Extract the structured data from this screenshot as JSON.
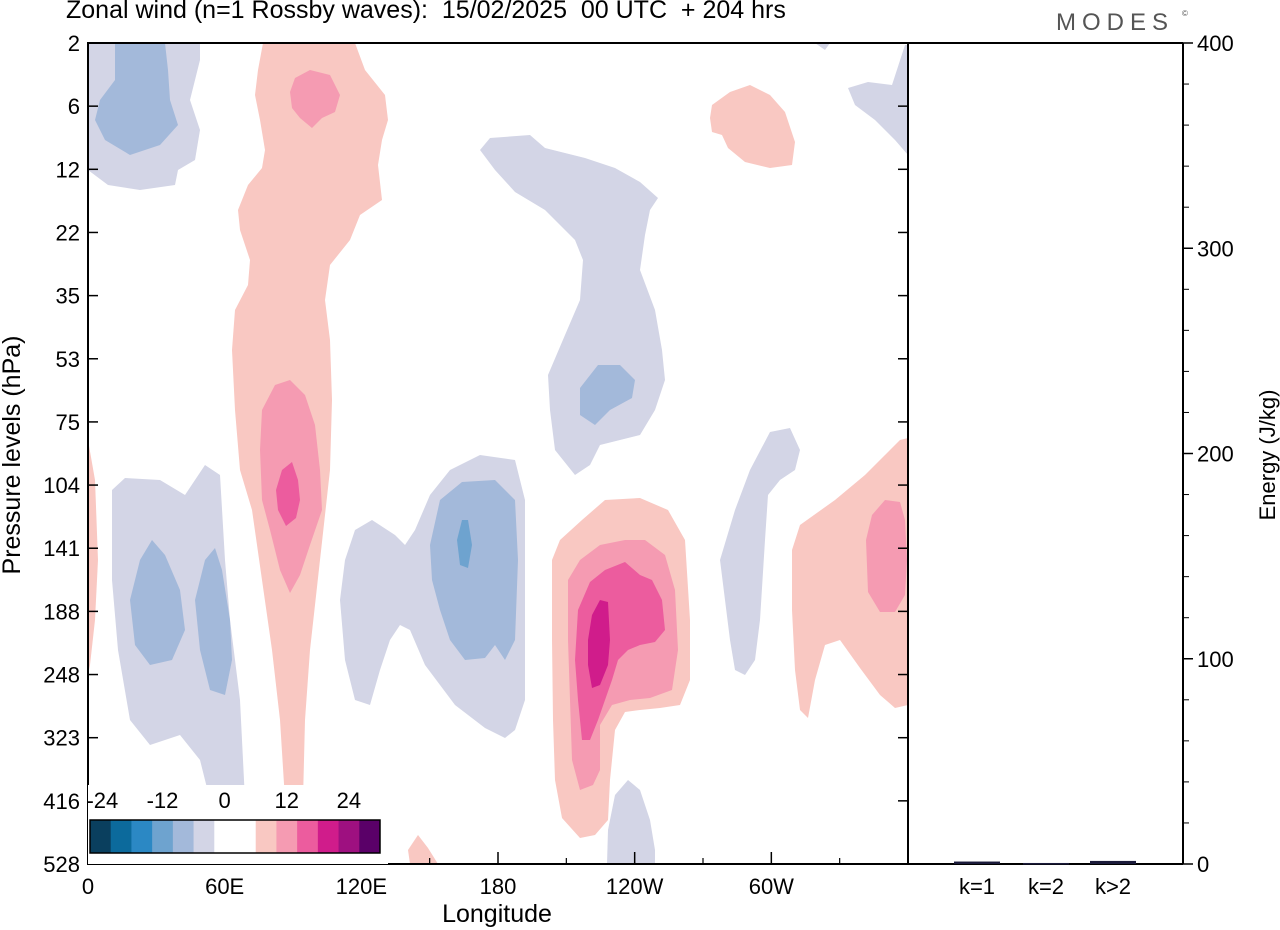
{
  "title": "Zonal wind (n=1 Rossby waves):  15/02/2025  00 UTC  + 204 hrs",
  "brand": "MODES",
  "brand_mark": "©",
  "chart_data": [
    {
      "type": "heatmap",
      "xlabel": "Longitude",
      "ylabel": "Pressure levels (hPa)",
      "x_ticks": [
        "0",
        "60E",
        "120E",
        "180",
        "120W",
        "60W"
      ],
      "y_ticks": [
        "2",
        "6",
        "12",
        "22",
        "35",
        "53",
        "75",
        "104",
        "141",
        "188",
        "248",
        "323",
        "416",
        "528"
      ],
      "colorbar": {
        "tick_labels": [
          "-24",
          "-12",
          "0",
          "12",
          "24"
        ],
        "colors": [
          "#0a3f5e",
          "#0c6a9c",
          "#2b88c4",
          "#6ea3cf",
          "#a3b9da",
          "#d3d5e6",
          "#ffffff",
          "#ffffff",
          "#f9c8c2",
          "#f59bb2",
          "#ec5c9e",
          "#d01c8b",
          "#9e1080",
          "#5a0068"
        ]
      },
      "colors": {
        "neg1": "#d3d5e6",
        "neg2": "#a3b9da",
        "neg3": "#6ea3cf",
        "pos1": "#f9c8c2",
        "pos2": "#f59bb2",
        "pos3": "#ec5c9e",
        "pos4": "#d01c8b"
      }
    },
    {
      "type": "bar",
      "ylabel": "Energy (J/kg)",
      "categories": [
        "k=1",
        "k=2",
        "k>2"
      ],
      "values": [
        1.2,
        0.5,
        1.5
      ],
      "ylim": [
        0,
        400
      ],
      "y_ticks": [
        "0",
        "100",
        "200",
        "300",
        "400"
      ],
      "bar_color": "#1a1a3a"
    }
  ]
}
